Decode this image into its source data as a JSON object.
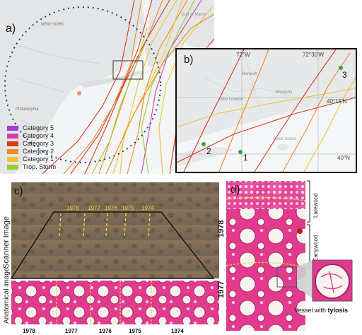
{
  "panel_a": {
    "label": "a)",
    "legend": [
      {
        "name": "Category 5",
        "color": "#a040d0"
      },
      {
        "name": "Category 4",
        "color": "#d23fa8"
      },
      {
        "name": "Category 3",
        "color": "#d83a1e"
      },
      {
        "name": "Category 2",
        "color": "#f08a22"
      },
      {
        "name": "Category 1",
        "color": "#f3c23a"
      },
      {
        "name": "Trop. Storm",
        "color": "#9acd32"
      }
    ],
    "places": [
      "NEW YORK",
      "Philadelphia",
      "Gulf of Maine"
    ]
  },
  "panel_b": {
    "label": "b)",
    "lon_labels": [
      "72°W",
      "72°30'W"
    ],
    "lat_labels": [
      "40°15'N",
      "40°N"
    ],
    "places": [
      "Norwich",
      "New London",
      "Westerly",
      "Block Island"
    ],
    "sites": [
      "1",
      "2",
      "3"
    ]
  },
  "panel_c": {
    "label": "c)",
    "scanner_label": "Scanner image",
    "anatomical_label": "Anatomical image",
    "top_years": [
      "1978",
      "1977",
      "1976",
      "1975",
      "1974"
    ],
    "bottom_years": [
      "1978",
      "1977",
      "1976",
      "1975",
      "1974"
    ]
  },
  "panel_d": {
    "label": "d)",
    "year_top": "1978",
    "year_bottom": "1977",
    "latewood": "Latewood",
    "earlywood": "Earlywood",
    "caption_prefix": "Vessel with ",
    "caption_bold": "tylosis"
  }
}
